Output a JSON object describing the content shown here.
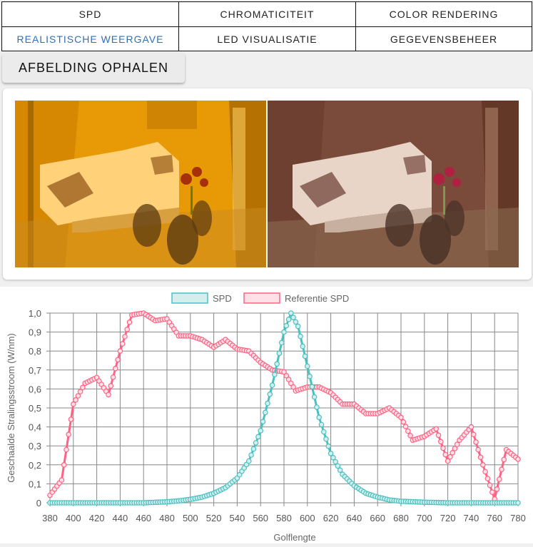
{
  "tabs": [
    {
      "label": "SPD",
      "active": false
    },
    {
      "label": "CHROMATICITEIT",
      "active": false
    },
    {
      "label": "COLOR RENDERING",
      "active": false
    },
    {
      "label": "REALISTISCHE WEERGAVE",
      "active": true
    },
    {
      "label": "LED VISUALISATIE",
      "active": false
    },
    {
      "label": "GEGEVENSBEHEER",
      "active": false
    }
  ],
  "fetch_button": "AFBELDING OPHALEN",
  "images": {
    "left_tint": "#e89a06",
    "right_tint": "#7a4a3a"
  },
  "chart_data": {
    "type": "line",
    "xlabel": "Golflengte",
    "ylabel": "Geschaalde Stralingsstroom (W/nm)",
    "xlim": [
      380,
      780
    ],
    "ylim": [
      0,
      1
    ],
    "x_ticks": [
      "380",
      "400",
      "420",
      "440",
      "460",
      "480",
      "500",
      "520",
      "540",
      "560",
      "580",
      "600",
      "620",
      "640",
      "660",
      "680",
      "700",
      "720",
      "740",
      "760",
      "780"
    ],
    "y_ticks": [
      "0",
      "0,1",
      "0,2",
      "0,3",
      "0,4",
      "0,5",
      "0,6",
      "0,7",
      "0,8",
      "0,9",
      "1,0"
    ],
    "grid": true,
    "legend_position": "top-center",
    "series": [
      {
        "name": "SPD",
        "color": "#4bc0c0",
        "fill": "#d4eeee",
        "points": [
          [
            380,
            0
          ],
          [
            400,
            0
          ],
          [
            420,
            0
          ],
          [
            440,
            0
          ],
          [
            460,
            0
          ],
          [
            480,
            0.005
          ],
          [
            490,
            0.01
          ],
          [
            500,
            0.018
          ],
          [
            510,
            0.03
          ],
          [
            520,
            0.05
          ],
          [
            530,
            0.08
          ],
          [
            540,
            0.13
          ],
          [
            550,
            0.22
          ],
          [
            560,
            0.38
          ],
          [
            570,
            0.62
          ],
          [
            580,
            0.9
          ],
          [
            586,
            1.0
          ],
          [
            592,
            0.93
          ],
          [
            600,
            0.72
          ],
          [
            610,
            0.45
          ],
          [
            620,
            0.26
          ],
          [
            630,
            0.15
          ],
          [
            640,
            0.09
          ],
          [
            650,
            0.05
          ],
          [
            660,
            0.03
          ],
          [
            670,
            0.015
          ],
          [
            680,
            0.008
          ],
          [
            700,
            0.003
          ],
          [
            720,
            0
          ],
          [
            740,
            0
          ],
          [
            760,
            0
          ],
          [
            780,
            0
          ]
        ]
      },
      {
        "name": "Referentie SPD",
        "color": "#ff6384",
        "fill": "#ffe0e6",
        "points": [
          [
            380,
            0.04
          ],
          [
            390,
            0.12
          ],
          [
            400,
            0.52
          ],
          [
            410,
            0.63
          ],
          [
            420,
            0.66
          ],
          [
            430,
            0.57
          ],
          [
            440,
            0.8
          ],
          [
            450,
            0.99
          ],
          [
            460,
            1.0
          ],
          [
            470,
            0.96
          ],
          [
            480,
            0.97
          ],
          [
            490,
            0.88
          ],
          [
            500,
            0.88
          ],
          [
            510,
            0.86
          ],
          [
            520,
            0.82
          ],
          [
            530,
            0.86
          ],
          [
            540,
            0.81
          ],
          [
            550,
            0.8
          ],
          [
            560,
            0.74
          ],
          [
            570,
            0.7
          ],
          [
            580,
            0.69
          ],
          [
            590,
            0.59
          ],
          [
            600,
            0.61
          ],
          [
            610,
            0.61
          ],
          [
            620,
            0.58
          ],
          [
            630,
            0.52
          ],
          [
            640,
            0.52
          ],
          [
            650,
            0.47
          ],
          [
            660,
            0.47
          ],
          [
            670,
            0.5
          ],
          [
            680,
            0.45
          ],
          [
            690,
            0.33
          ],
          [
            700,
            0.35
          ],
          [
            710,
            0.39
          ],
          [
            720,
            0.22
          ],
          [
            730,
            0.33
          ],
          [
            740,
            0.4
          ],
          [
            750,
            0.2
          ],
          [
            760,
            0.02
          ],
          [
            770,
            0.28
          ],
          [
            780,
            0.23
          ]
        ]
      }
    ]
  }
}
